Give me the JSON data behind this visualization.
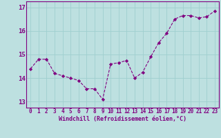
{
  "x": [
    0,
    1,
    2,
    3,
    4,
    5,
    6,
    7,
    8,
    9,
    10,
    11,
    12,
    13,
    14,
    15,
    16,
    17,
    18,
    19,
    20,
    21,
    22,
    23
  ],
  "y": [
    14.4,
    14.8,
    14.8,
    14.2,
    14.1,
    14.0,
    13.9,
    13.55,
    13.55,
    13.1,
    14.6,
    14.65,
    14.75,
    14.0,
    14.25,
    14.9,
    15.5,
    15.9,
    16.5,
    16.65,
    16.65,
    16.55,
    16.6,
    16.85
  ],
  "line_color": "#800080",
  "marker": "D",
  "marker_size": 2.2,
  "bg_color": "#bde0e0",
  "grid_color": "#9fcfcf",
  "xlabel": "Windchill (Refroidissement éolien,°C)",
  "ylim": [
    12.75,
    17.25
  ],
  "xlim": [
    -0.5,
    23.5
  ],
  "yticks": [
    13,
    14,
    15,
    16,
    17
  ],
  "xticks": [
    0,
    1,
    2,
    3,
    4,
    5,
    6,
    7,
    8,
    9,
    10,
    11,
    12,
    13,
    14,
    15,
    16,
    17,
    18,
    19,
    20,
    21,
    22,
    23
  ],
  "tick_fontsize": 5.5,
  "xlabel_fontsize": 6.0,
  "ytick_fontsize": 6.5
}
